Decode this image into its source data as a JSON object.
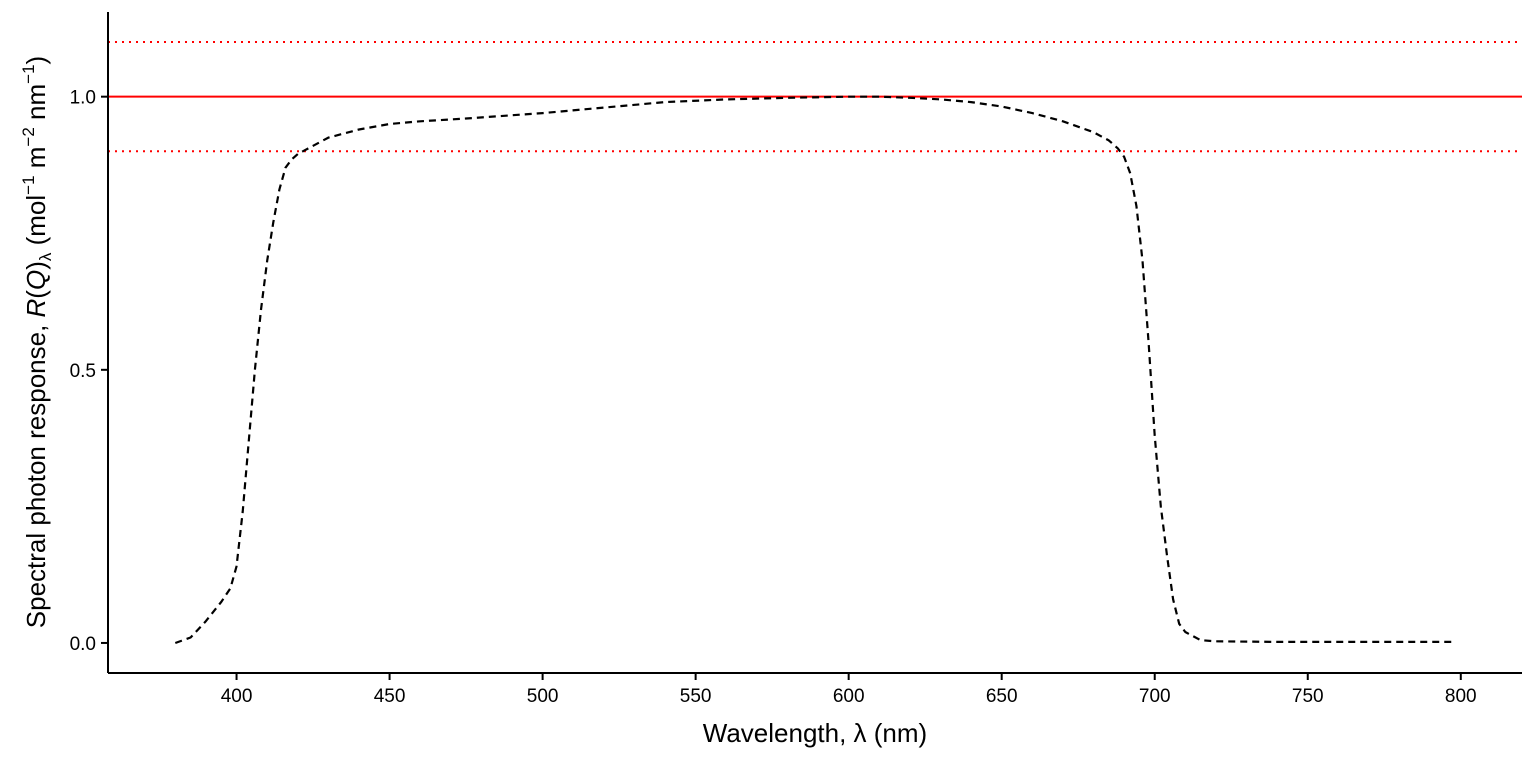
{
  "chart_data": {
    "type": "line",
    "xlabel": "Wavelength, λ (nm)",
    "ylabel": {
      "prefix": "Spectral photon response, ",
      "symbol_R": "R",
      "open_paren": "(",
      "symbol_Q": "Q",
      "close_paren": ")",
      "sub_lambda": "λ",
      "units_open": " (mol",
      "sup1": "−1",
      "unit_m": " m",
      "sup2": "−2",
      "unit_nm": " nm",
      "sup3": "−1",
      "units_close": ")"
    },
    "xlim": [
      358,
      820
    ],
    "ylim": [
      -0.055,
      1.155
    ],
    "x_ticks": [
      400,
      450,
      500,
      550,
      600,
      650,
      700,
      750,
      800
    ],
    "x_tick_labels": [
      "400",
      "450",
      "500",
      "550",
      "600",
      "650",
      "700",
      "750",
      "800"
    ],
    "y_ticks": [
      0.0,
      0.5,
      1.0
    ],
    "y_tick_labels": [
      "0.0",
      "0.5",
      "1.0"
    ],
    "grid": false,
    "reference_lines": [
      {
        "y": 1.0,
        "style": "solid",
        "color": "#ff0000"
      },
      {
        "y": 1.1,
        "style": "dotted",
        "color": "#ff0000"
      },
      {
        "y": 0.9,
        "style": "dotted",
        "color": "#ff0000"
      }
    ],
    "series": [
      {
        "style": "dashed",
        "color": "#000000",
        "x": [
          380,
          385,
          390,
          395,
          398,
          400,
          402,
          404,
          406,
          408,
          410,
          412,
          414,
          416,
          418,
          420,
          425,
          430,
          440,
          450,
          460,
          475,
          500,
          520,
          540,
          560,
          580,
          600,
          610,
          620,
          630,
          640,
          650,
          660,
          670,
          680,
          685,
          688,
          690,
          692,
          694,
          696,
          698,
          700,
          702,
          704,
          706,
          708,
          710,
          715,
          720,
          740,
          760,
          780,
          798
        ],
        "y": [
          0.0,
          0.01,
          0.04,
          0.075,
          0.1,
          0.14,
          0.24,
          0.37,
          0.5,
          0.61,
          0.7,
          0.77,
          0.83,
          0.87,
          0.885,
          0.895,
          0.91,
          0.925,
          0.94,
          0.95,
          0.955,
          0.96,
          0.97,
          0.98,
          0.99,
          0.995,
          0.998,
          1.0,
          1.0,
          0.998,
          0.995,
          0.99,
          0.982,
          0.97,
          0.955,
          0.935,
          0.92,
          0.905,
          0.89,
          0.86,
          0.8,
          0.7,
          0.55,
          0.38,
          0.25,
          0.16,
          0.08,
          0.035,
          0.02,
          0.005,
          0.003,
          0.002,
          0.002,
          0.002,
          0.002
        ]
      }
    ]
  }
}
